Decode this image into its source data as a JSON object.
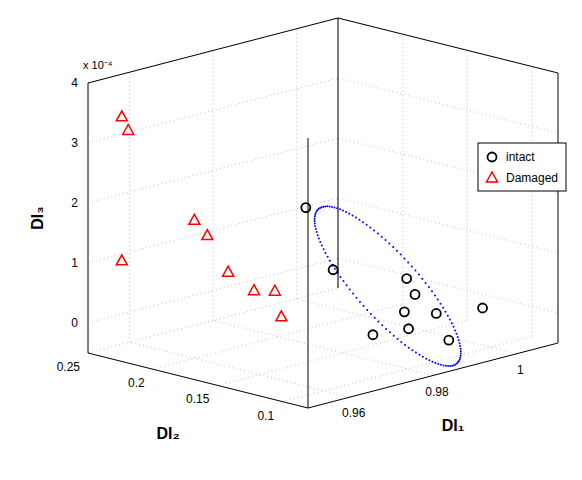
{
  "chart_data": {
    "type": "scatter3d",
    "x_label": "DI₁",
    "y_label": "DI₂",
    "z_label": "DI₃",
    "z_tick_scale_label": "x 10⁻⁴",
    "xlim": [
      0.95,
      1.01
    ],
    "ylim": [
      0.08,
      0.25
    ],
    "zlim": [
      -5e-05,
      0.0004
    ],
    "xticks": [
      0.96,
      0.98,
      {
        "value": 1,
        "label": "1"
      }
    ],
    "yticks": [
      0.1,
      0.15,
      0.2,
      0.25
    ],
    "zticks": [
      0,
      {
        "value": 0.0001,
        "label": "1"
      },
      {
        "value": 0.0002,
        "label": "2"
      },
      {
        "value": 0.0003,
        "label": "3"
      },
      {
        "value": 0.0004,
        "label": "4"
      }
    ],
    "grid": true,
    "legend": "upper right",
    "series": [
      {
        "name": "intact",
        "color": "#000000",
        "marker": "circle",
        "x": [
          0.965,
          0.97,
          0.983,
          0.985,
          0.984,
          0.987,
          0.985,
          0.978,
          0.99,
          0.995
        ],
        "y": [
          0.13,
          0.125,
          0.11,
          0.11,
          0.115,
          0.1,
          0.115,
          0.12,
          0.1,
          0.09
        ],
        "z": [
          0.00023,
          0.00012,
          9e-05,
          6e-05,
          3e-05,
          3e-05,
          0.0,
          0.0,
          -2e-05,
          3e-05
        ]
      },
      {
        "name": "Damaged",
        "color": "#ff0000",
        "marker": "triangle",
        "x": [
          0.955,
          0.955,
          0.96,
          0.96,
          0.955,
          0.965,
          0.965,
          0.97,
          0.97
        ],
        "y": [
          0.24,
          0.235,
          0.2,
          0.19,
          0.24,
          0.19,
          0.17,
          0.17,
          0.165
        ],
        "z": [
          0.00034,
          0.00032,
          0.00018,
          0.00016,
          0.0001,
          9e-05,
          7e-05,
          6e-05,
          2e-05
        ]
      }
    ],
    "ellipsoid": {
      "color": "#0000ff",
      "center": [
        0.98,
        0.115,
        8e-05
      ],
      "axes": [
        [
          -0.015,
          0,
          0.00016
        ],
        [
          0.006,
          -0.01,
          0
        ]
      ]
    }
  }
}
